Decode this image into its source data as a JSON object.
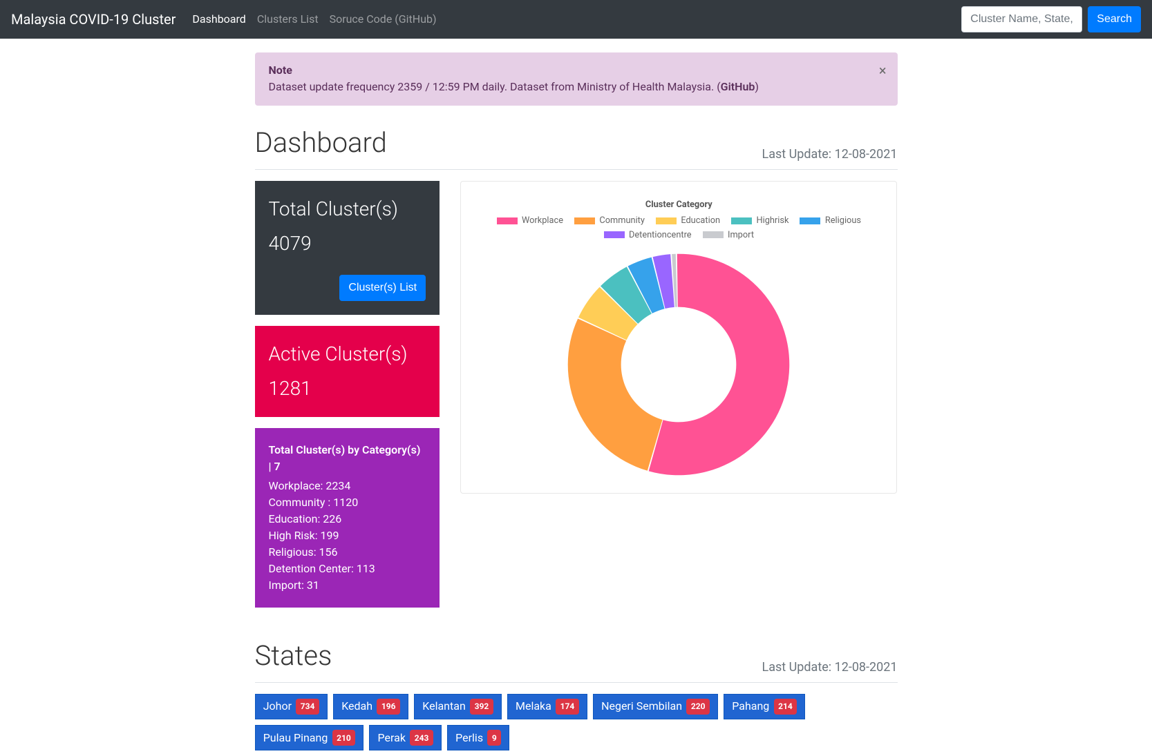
{
  "navbar": {
    "brand": "Malaysia COVID-19 Cluster",
    "links": [
      {
        "label": "Dashboard",
        "active": true
      },
      {
        "label": "Clusters List",
        "active": false
      },
      {
        "label": "Soruce Code (GitHub)",
        "active": false
      }
    ],
    "search_placeholder": "Cluster Name, State, or District",
    "search_button": "Search"
  },
  "alert": {
    "heading": "Note",
    "body_prefix": "Dataset update frequency 2359 / 12:59 PM daily. Dataset from Ministry of Health Malaysia. (",
    "github_text": "GitHub",
    "body_suffix": ")"
  },
  "dashboard": {
    "title": "Dashboard",
    "last_update_label": "Last Update: ",
    "last_update_value": "12-08-2021",
    "total_card": {
      "title": "Total Cluster(s)",
      "value": "4079",
      "button": "Cluster(s) List"
    },
    "active_card": {
      "title": "Active Cluster(s)",
      "value": "1281"
    },
    "category_card": {
      "title_prefix": "Total Cluster(s) by Category(s) | ",
      "title_count": "7",
      "lines": [
        "Workplace: 2234",
        "Community : 1120",
        "Education: 226",
        "High Risk: 199",
        "Religious: 156",
        "Detention Center: 113",
        "Import: 31"
      ]
    }
  },
  "chart": {
    "type": "donut",
    "title": "Cluster Category",
    "inner_radius": 0.52,
    "background_color": "#ffffff",
    "series": [
      {
        "label": "Workplace",
        "value": 2234,
        "color": "#ff5294"
      },
      {
        "label": "Community",
        "value": 1120,
        "color": "#ff9f40"
      },
      {
        "label": "Education",
        "value": 226,
        "color": "#ffcd56"
      },
      {
        "label": "Highrisk",
        "value": 199,
        "color": "#4bc0c0"
      },
      {
        "label": "Religious",
        "value": 156,
        "color": "#36a2eb"
      },
      {
        "label": "Detentioncentre",
        "value": 113,
        "color": "#9966ff"
      },
      {
        "label": "Import",
        "value": 31,
        "color": "#c9cbcf"
      }
    ],
    "title_fontsize": 13,
    "title_fontweight": 700,
    "label_fontsize": 13
  },
  "states": {
    "title": "States",
    "last_update_label": "Last Update: ",
    "last_update_value": "12-08-2021",
    "items": [
      {
        "name": "Johor",
        "count": "734"
      },
      {
        "name": "Kedah",
        "count": "196"
      },
      {
        "name": "Kelantan",
        "count": "392"
      },
      {
        "name": "Melaka",
        "count": "174"
      },
      {
        "name": "Negeri Sembilan",
        "count": "220"
      },
      {
        "name": "Pahang",
        "count": "214"
      },
      {
        "name": "Pulau Pinang",
        "count": "210"
      },
      {
        "name": "Perak",
        "count": "243"
      },
      {
        "name": "Perlis",
        "count": "9"
      }
    ]
  },
  "colors": {
    "navbar_bg": "#343a40",
    "primary_btn": "#007bff",
    "alert_bg": "#e6cfe6",
    "alert_text": "#5a2e5a",
    "card_red": "#e4004b",
    "card_purple": "#9b26b6",
    "state_btn": "#2065d1",
    "badge_red": "#dc3545",
    "muted": "#6c757d"
  }
}
